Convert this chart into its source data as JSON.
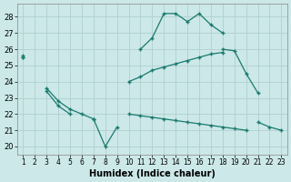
{
  "x": [
    1,
    2,
    3,
    4,
    5,
    6,
    7,
    8,
    9,
    10,
    11,
    12,
    13,
    14,
    15,
    16,
    17,
    18,
    19,
    20,
    21,
    22,
    23
  ],
  "background": "#cce8e8",
  "line_color": "#1a7a6e",
  "grid_color": "#b0d0d0",
  "xlabel": "Humidex (Indice chaleur)",
  "xlim": [
    0.5,
    23.5
  ],
  "ylim": [
    19.5,
    28.8
  ],
  "yticks": [
    20,
    21,
    22,
    23,
    24,
    25,
    26,
    27,
    28
  ],
  "xticks": [
    1,
    2,
    3,
    4,
    5,
    6,
    7,
    8,
    9,
    10,
    11,
    12,
    13,
    14,
    15,
    16,
    17,
    18,
    19,
    20,
    21,
    22,
    23
  ],
  "line_arch": [
    null,
    null,
    null,
    null,
    null,
    null,
    null,
    null,
    null,
    null,
    26.0,
    26.7,
    28.2,
    28.2,
    27.7,
    28.2,
    27.5,
    27.0,
    null,
    null,
    null,
    null,
    null
  ],
  "line_upper": [
    25.6,
    null,
    null,
    null,
    null,
    null,
    null,
    null,
    null,
    null,
    null,
    null,
    null,
    null,
    null,
    null,
    null,
    26.0,
    25.9,
    24.5,
    23.3,
    null,
    null
  ],
  "line_mid": [
    25.5,
    null,
    null,
    null,
    null,
    null,
    null,
    null,
    null,
    24.0,
    24.3,
    24.7,
    24.9,
    25.1,
    25.3,
    25.5,
    25.7,
    25.8,
    null,
    null,
    null,
    null,
    null
  ],
  "line_low1": [
    null,
    null,
    23.4,
    22.5,
    22.0,
    null,
    null,
    null,
    null,
    null,
    null,
    null,
    null,
    null,
    null,
    null,
    null,
    null,
    null,
    null,
    null,
    null,
    null
  ],
  "line_low2": [
    null,
    null,
    null,
    null,
    null,
    22.0,
    21.7,
    20.0,
    21.2,
    null,
    null,
    null,
    null,
    null,
    null,
    null,
    null,
    null,
    null,
    null,
    null,
    null,
    null
  ],
  "line_long": [
    25.5,
    null,
    23.6,
    22.8,
    22.3,
    22.0,
    21.7,
    null,
    null,
    null,
    null,
    null,
    null,
    null,
    null,
    null,
    null,
    null,
    null,
    null,
    21.5,
    21.2,
    21.0
  ],
  "line_flat": [
    null,
    null,
    null,
    null,
    null,
    null,
    null,
    null,
    null,
    22.0,
    21.9,
    21.8,
    21.7,
    21.6,
    21.5,
    21.4,
    21.3,
    21.2,
    21.1,
    21.0,
    null,
    null,
    null
  ]
}
